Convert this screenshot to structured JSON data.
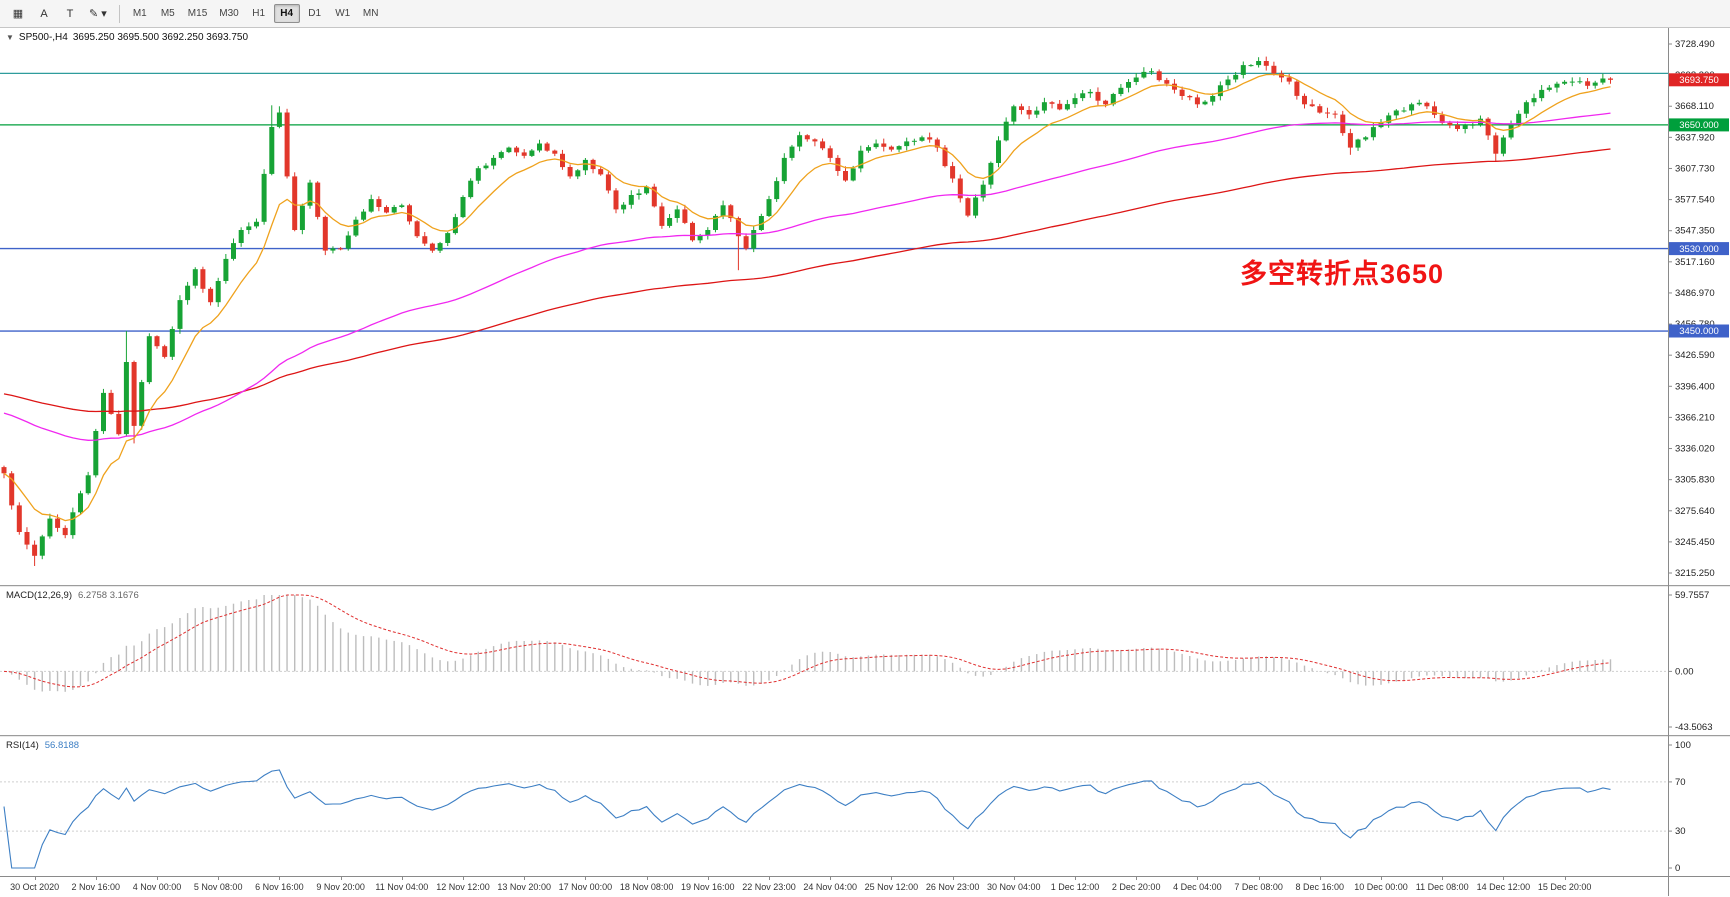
{
  "toolbar": {
    "icon_buttons": [
      {
        "name": "chart-icon",
        "glyph": "▦"
      },
      {
        "name": "text-label-icon",
        "glyph": "A"
      },
      {
        "name": "text-box-icon",
        "glyph": "T"
      },
      {
        "name": "draw-tools-icon",
        "glyph": "✎",
        "caret": "▾"
      }
    ],
    "timeframes": [
      "M1",
      "M5",
      "M15",
      "M30",
      "H1",
      "H4",
      "D1",
      "W1",
      "MN"
    ],
    "active_timeframe": "H4"
  },
  "chart_header": {
    "arrow": "▼",
    "title": "SP500-,H4",
    "ohlc": "3695.250 3695.500 3692.250 3693.750"
  },
  "annotation": {
    "text": "多空转折点3650",
    "color": "#f01414"
  },
  "price_axis": {
    "top_value": 3728.49,
    "bottom_value": 3215.25,
    "ticks": [
      "3728.490",
      "3698.300",
      "3668.110",
      "3637.920",
      "3607.730",
      "3577.540",
      "3547.350",
      "3517.160",
      "3486.970",
      "3456.780",
      "3426.590",
      "3396.400",
      "3366.210",
      "3336.020",
      "3305.830",
      "3275.640",
      "3245.450",
      "3215.250"
    ],
    "current_price": {
      "value": 3693.75,
      "label": "3693.750",
      "color": "#e02525"
    }
  },
  "price_lines": [
    {
      "name": "hline-3700-teal",
      "price": 3700.0,
      "color": "#2e9c9c",
      "label": null
    },
    {
      "name": "hline-3650",
      "price": 3650.0,
      "color": "#009f3c",
      "label": "3650.000"
    },
    {
      "name": "hline-3530",
      "price": 3530.0,
      "color": "#3f62c9",
      "label": "3530.000"
    },
    {
      "name": "hline-3450",
      "price": 3450.0,
      "color": "#3f62c9",
      "label": "3450.000"
    }
  ],
  "macd_panel": {
    "title": "MACD(12,26,9)",
    "values": "6.2758 3.1676",
    "axis_labels": [
      "59.7557",
      "0.00",
      "-43.5063"
    ],
    "axis_max": 59.7557,
    "axis_min": -43.5063,
    "histogram_color": "#bdbdbd",
    "signal_color": "#e03030"
  },
  "rsi_panel": {
    "title": "RSI(14)",
    "value": "56.8188",
    "axis_labels": [
      "100",
      "70",
      "30",
      "0"
    ],
    "axis_max": 100,
    "axis_min": 0,
    "levels": [
      70,
      30
    ],
    "line_color": "#3d7fc4"
  },
  "time_axis": {
    "first_bar": 4,
    "bar_step": 8,
    "labels": [
      "30 Oct 2020",
      "2 Nov 16:00",
      "4 Nov 00:00",
      "5 Nov 08:00",
      "6 Nov 16:00",
      "9 Nov 20:00",
      "11 Nov 04:00",
      "12 Nov 12:00",
      "13 Nov 20:00",
      "17 Nov 00:00",
      "18 Nov 08:00",
      "19 Nov 16:00",
      "22 Nov 23:00",
      "24 Nov 04:00",
      "25 Nov 12:00",
      "26 Nov 23:00",
      "30 Nov 04:00",
      "1 Dec 12:00",
      "2 Dec 20:00",
      "4 Dec 04:00",
      "7 Dec 08:00",
      "8 Dec 16:00",
      "10 Dec 00:00",
      "11 Dec 08:00",
      "14 Dec 12:00",
      "15 Dec 20:00"
    ]
  },
  "chart_data": {
    "type": "candlestick",
    "symbol": "SP500-",
    "timeframe": "H4",
    "bars": 211,
    "last_close": 3693.75,
    "up_color": "#17a335",
    "down_color": "#e2372b",
    "anchors": [
      [
        0,
        3312
      ],
      [
        2,
        3255
      ],
      [
        4,
        3232
      ],
      [
        6,
        3268
      ],
      [
        8,
        3252
      ],
      [
        11,
        3310
      ],
      [
        13,
        3390
      ],
      [
        15,
        3350
      ],
      [
        16,
        3420
      ],
      [
        17,
        3358
      ],
      [
        19,
        3445
      ],
      [
        21,
        3425
      ],
      [
        23,
        3480
      ],
      [
        25,
        3510
      ],
      [
        27,
        3478
      ],
      [
        29,
        3520
      ],
      [
        31,
        3548
      ],
      [
        33,
        3556
      ],
      [
        35,
        3648
      ],
      [
        36,
        3662
      ],
      [
        37,
        3600
      ],
      [
        38,
        3548
      ],
      [
        40,
        3594
      ],
      [
        42,
        3528
      ],
      [
        44,
        3530
      ],
      [
        46,
        3558
      ],
      [
        48,
        3578
      ],
      [
        50,
        3565
      ],
      [
        52,
        3572
      ],
      [
        54,
        3542
      ],
      [
        56,
        3528
      ],
      [
        58,
        3545
      ],
      [
        60,
        3580
      ],
      [
        62,
        3608
      ],
      [
        64,
        3618
      ],
      [
        66,
        3628
      ],
      [
        68,
        3620
      ],
      [
        70,
        3632
      ],
      [
        72,
        3622
      ],
      [
        74,
        3600
      ],
      [
        76,
        3616
      ],
      [
        78,
        3602
      ],
      [
        80,
        3568
      ],
      [
        82,
        3582
      ],
      [
        84,
        3590
      ],
      [
        86,
        3552
      ],
      [
        88,
        3568
      ],
      [
        90,
        3538
      ],
      [
        92,
        3548
      ],
      [
        94,
        3572
      ],
      [
        96,
        3542
      ],
      [
        97,
        3530
      ],
      [
        98,
        3548
      ],
      [
        100,
        3578
      ],
      [
        102,
        3618
      ],
      [
        104,
        3640
      ],
      [
        106,
        3634
      ],
      [
        108,
        3618
      ],
      [
        110,
        3596
      ],
      [
        112,
        3625
      ],
      [
        114,
        3632
      ],
      [
        116,
        3626
      ],
      [
        118,
        3634
      ],
      [
        120,
        3638
      ],
      [
        122,
        3628
      ],
      [
        124,
        3598
      ],
      [
        126,
        3562
      ],
      [
        128,
        3592
      ],
      [
        130,
        3635
      ],
      [
        132,
        3668
      ],
      [
        134,
        3660
      ],
      [
        136,
        3672
      ],
      [
        138,
        3665
      ],
      [
        140,
        3676
      ],
      [
        142,
        3682
      ],
      [
        144,
        3670
      ],
      [
        146,
        3686
      ],
      [
        148,
        3696
      ],
      [
        150,
        3702
      ],
      [
        152,
        3690
      ],
      [
        154,
        3678
      ],
      [
        156,
        3670
      ],
      [
        158,
        3678
      ],
      [
        160,
        3694
      ],
      [
        162,
        3708
      ],
      [
        164,
        3712
      ],
      [
        166,
        3700
      ],
      [
        168,
        3692
      ],
      [
        170,
        3670
      ],
      [
        172,
        3662
      ],
      [
        174,
        3660
      ],
      [
        176,
        3628
      ],
      [
        178,
        3638
      ],
      [
        180,
        3652
      ],
      [
        182,
        3664
      ],
      [
        184,
        3670
      ],
      [
        186,
        3668
      ],
      [
        188,
        3652
      ],
      [
        190,
        3646
      ],
      [
        193,
        3656
      ],
      [
        195,
        3622
      ],
      [
        197,
        3650
      ],
      [
        199,
        3672
      ],
      [
        201,
        3684
      ],
      [
        203,
        3690
      ],
      [
        205,
        3692
      ],
      [
        207,
        3688
      ],
      [
        209,
        3695
      ],
      [
        210,
        3693.75
      ]
    ],
    "wick_boosts": [
      {
        "bar": 4,
        "low": 3222
      },
      {
        "bar": 16,
        "high": 3450
      },
      {
        "bar": 17,
        "low": 3341
      },
      {
        "bar": 35,
        "high": 3669
      },
      {
        "bar": 36,
        "high": 3668
      },
      {
        "bar": 96,
        "low": 3509
      },
      {
        "bar": 176,
        "low": 3621
      },
      {
        "bar": 195,
        "low": 3615
      }
    ],
    "moving_averages": [
      {
        "name": "ma-slow",
        "period": 150,
        "seed": 3390,
        "color": "#dd1515"
      },
      {
        "name": "ma-mid",
        "period": 75,
        "seed": 3372,
        "color": "#f028f0"
      },
      {
        "name": "ma-fast",
        "period": 10,
        "seed": 3312,
        "color": "#efa21d"
      }
    ],
    "indicators": {
      "macd": {
        "fast": 12,
        "slow": 26,
        "signal": 9
      },
      "rsi": {
        "period": 14
      }
    }
  }
}
